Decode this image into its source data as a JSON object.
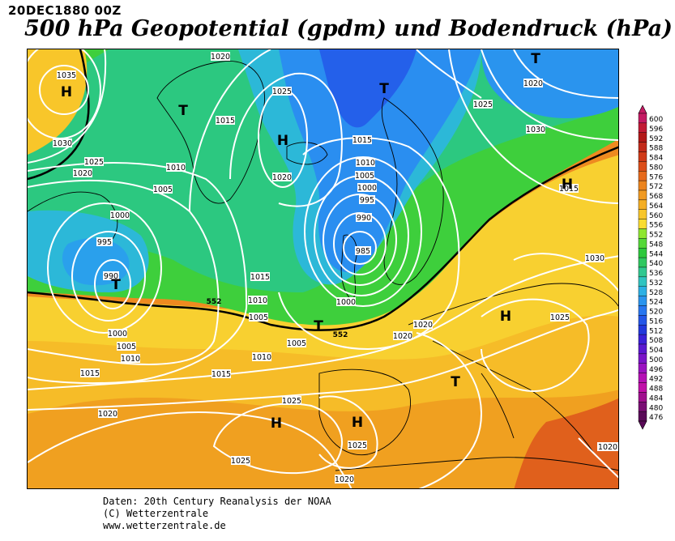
{
  "header": {
    "date": "20DEC1880 00Z",
    "title": "500 hPa Geopotential (gpdm) und Bodendruck (hPa)"
  },
  "footer": {
    "line1": "Daten: 20th Century Reanalysis der NOAA",
    "line2": "(C) Wetterzentrale",
    "line3": "www.wetterzentrale.de"
  },
  "legend": {
    "levels": [
      "600",
      "596",
      "592",
      "588",
      "584",
      "580",
      "576",
      "572",
      "568",
      "564",
      "560",
      "556",
      "552",
      "548",
      "544",
      "540",
      "536",
      "532",
      "528",
      "524",
      "520",
      "516",
      "512",
      "508",
      "504",
      "500",
      "496",
      "492",
      "488",
      "484",
      "480",
      "476"
    ],
    "colors": [
      "#c41a63",
      "#c21a35",
      "#b21818",
      "#c22a1a",
      "#d03a18",
      "#dc4e1a",
      "#e66a1c",
      "#ec841e",
      "#f09a22",
      "#f4ae24",
      "#f8c62a",
      "#fadc30",
      "#8ee630",
      "#54d838",
      "#2cc83c",
      "#2ec860",
      "#30c890",
      "#30c4c0",
      "#2cb0e4",
      "#2a94ee",
      "#2876f0",
      "#2456e8",
      "#2238dc",
      "#3a20d8",
      "#5a18d0",
      "#7a14c8",
      "#9a12c0",
      "#b410b4",
      "#c010a8",
      "#a0108e",
      "#7a0e74",
      "#5a0a58"
    ]
  },
  "map": {
    "pressure_labels": {
      "l1035": "1035",
      "l1030a": "1030",
      "l1025a": "1025",
      "l1020a": "1020",
      "l1020top": "1020",
      "l1015a": "1015",
      "l1010a": "1010",
      "l1005a": "1005",
      "l1000a": "1000",
      "l995a": "995",
      "l990a": "990",
      "l1025g": "1025",
      "l1020g": "1020",
      "l1015b": "1015",
      "l1015s": "1015",
      "l1010s": "1010",
      "l1005s": "1005",
      "l1000s": "1000",
      "l995s": "995",
      "l990s": "990",
      "l985s": "985",
      "l1015c": "1015",
      "l1010c": "1010",
      "l1005c": "1005",
      "l1000c": "1000",
      "l1020ne": "1020",
      "l1025ne": "1025",
      "l1030ne": "1030",
      "l1015ne": "1015",
      "l1030e": "1030",
      "l1025e": "1025",
      "l1000b": "1000",
      "l1005b": "1005",
      "l1010b": "1010",
      "l1015d": "1015",
      "l1010d": "1010",
      "l1015e": "1015",
      "l1005d": "1005",
      "l1020b": "1020",
      "l1020c": "1020",
      "l1020d": "1020",
      "l1025b": "1025",
      "l1025c": "1025",
      "l1025d": "1025",
      "l1020e": "1020",
      "l1020f": "1020"
    },
    "height_labels": {
      "h552a": "552",
      "h552b": "552"
    },
    "centers": {
      "H": "H",
      "T": "T"
    }
  }
}
